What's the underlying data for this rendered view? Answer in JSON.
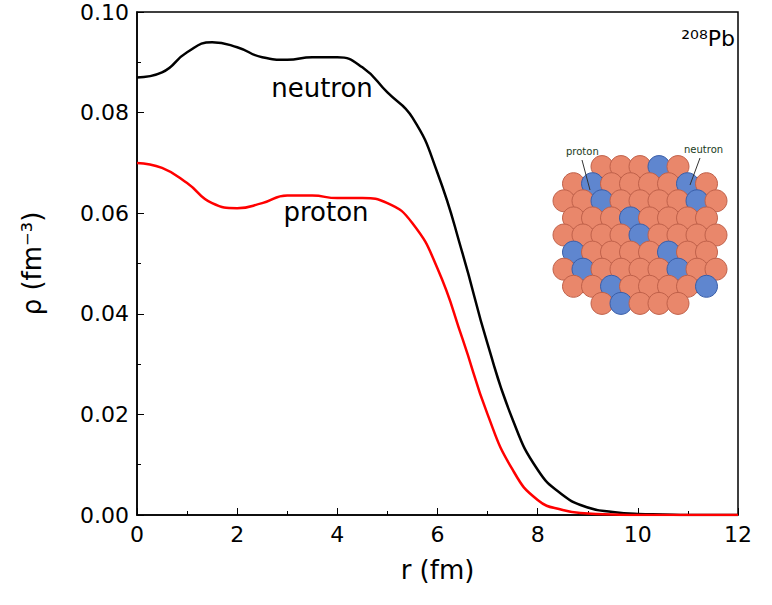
{
  "chart_data": {
    "type": "line",
    "x_label": "r (fm)",
    "y_label": "ρ (fm⁻³)",
    "annotations": [
      "²⁰⁸Pb"
    ],
    "inset_labels": [
      "proton",
      "neutron"
    ],
    "x": [
      0,
      0.5,
      1,
      1.5,
      2,
      2.5,
      3,
      3.5,
      4,
      4.5,
      5,
      5.5,
      6,
      6.5,
      7,
      7.5,
      8,
      8.5,
      9,
      9.5,
      10,
      10.5,
      11,
      11.5,
      12
    ],
    "series": [
      {
        "name": "neutron",
        "color": "#000000",
        "values": [
          0.087,
          0.088,
          0.092,
          0.094,
          0.093,
          0.091,
          0.0905,
          0.091,
          0.091,
          0.089,
          0.084,
          0.079,
          0.068,
          0.052,
          0.034,
          0.019,
          0.009,
          0.004,
          0.0015,
          0.0006,
          0.0002,
          0.0001,
          0,
          0,
          0
        ]
      },
      {
        "name": "proton",
        "color": "#ff0000",
        "values": [
          0.07,
          0.069,
          0.066,
          0.062,
          0.061,
          0.062,
          0.0635,
          0.0635,
          0.063,
          0.063,
          0.062,
          0.058,
          0.049,
          0.035,
          0.02,
          0.009,
          0.003,
          0.001,
          0.0003,
          0.0001,
          0,
          0,
          0,
          0,
          0
        ]
      }
    ],
    "xlim": [
      0,
      12
    ],
    "xticks": [
      0,
      2,
      4,
      6,
      8,
      10,
      12
    ],
    "ylim": [
      0,
      0.1
    ],
    "yticks": [
      {
        "value": 0,
        "label": "0.00"
      },
      {
        "value": 0.02,
        "label": "0.02"
      },
      {
        "value": 0.04,
        "label": "0.04"
      },
      {
        "value": 0.06,
        "label": "0.06"
      },
      {
        "value": 0.08,
        "label": "0.08"
      },
      {
        "value": 0.1,
        "label": "0.10"
      }
    ],
    "grid": false
  }
}
